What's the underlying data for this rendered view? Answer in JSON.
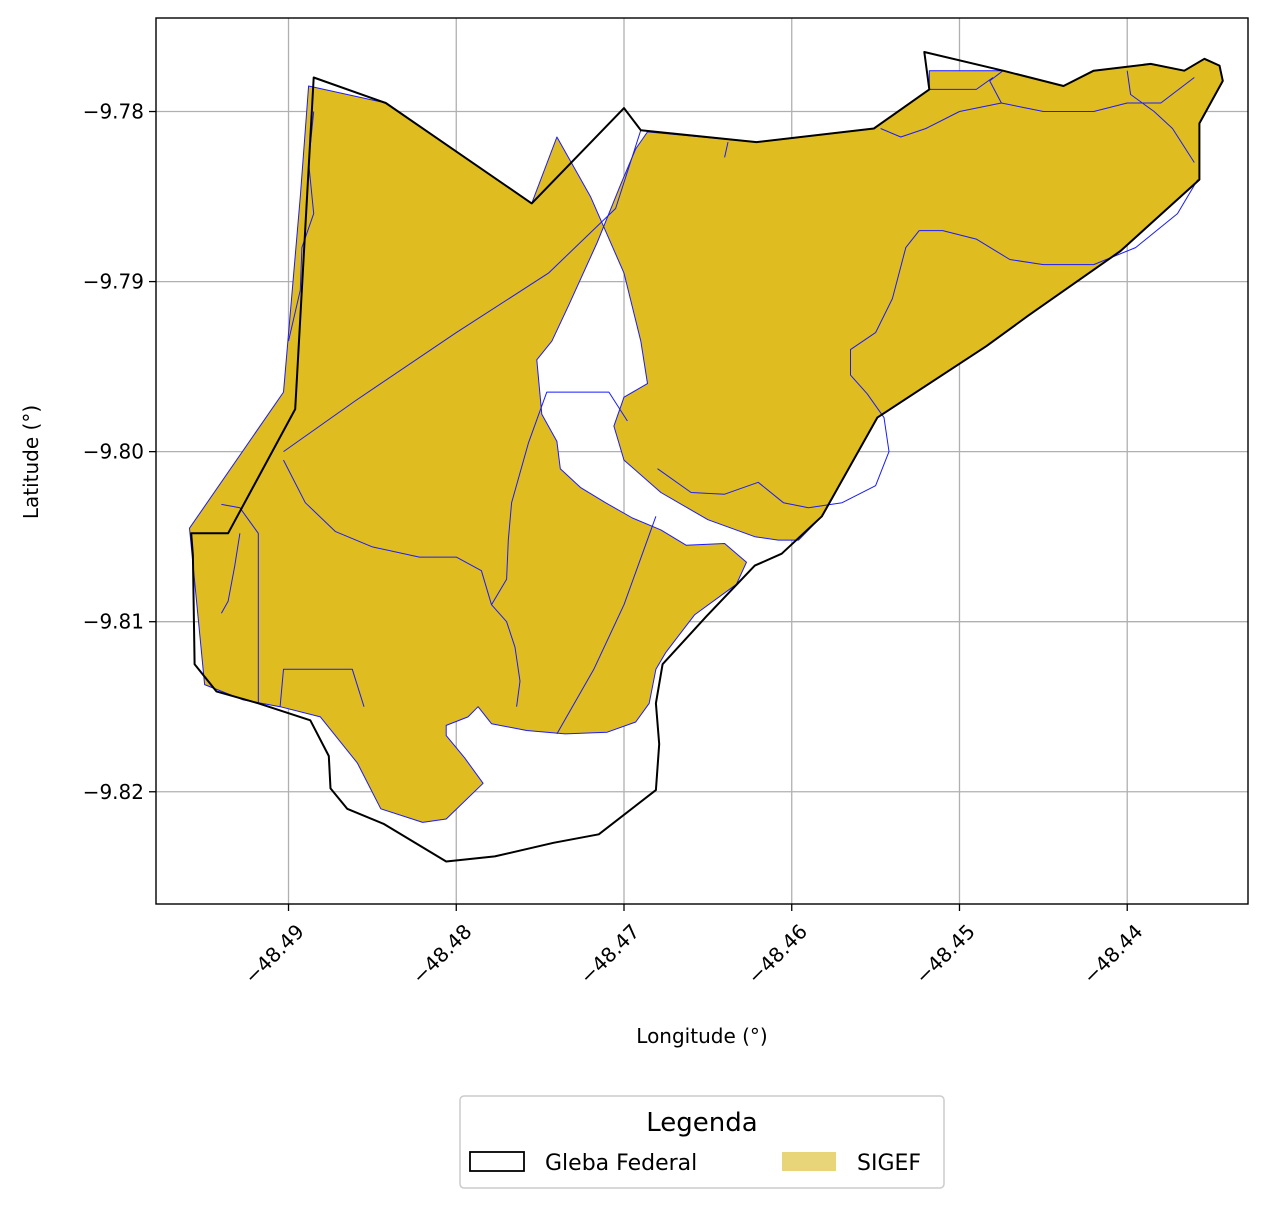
{
  "chart_data": {
    "type": "map",
    "xlabel": "Longitude (°)",
    "ylabel": "Latitude (°)",
    "xlim": [
      -48.4979,
      -48.4328
    ],
    "ylim": [
      -9.8266,
      -9.7745
    ],
    "x_ticks": [
      {
        "value": -48.49,
        "label": "−48.49"
      },
      {
        "value": -48.48,
        "label": "−48.48"
      },
      {
        "value": -48.47,
        "label": "−48.47"
      },
      {
        "value": -48.46,
        "label": "−48.46"
      },
      {
        "value": -48.45,
        "label": "−48.45"
      },
      {
        "value": -48.44,
        "label": "−48.44"
      }
    ],
    "y_ticks": [
      {
        "value": -9.78,
        "label": "−9.78"
      },
      {
        "value": -9.79,
        "label": "−9.79"
      },
      {
        "value": -9.8,
        "label": "−9.80"
      },
      {
        "value": -9.81,
        "label": "−9.81"
      },
      {
        "value": -9.82,
        "label": "−9.82"
      }
    ],
    "grid": true,
    "legend": {
      "title": "Legenda",
      "placement": "bottom-center",
      "entries": [
        {
          "label": "Gleba Federal",
          "style": "outline",
          "color": "#000000"
        },
        {
          "label": "SIGEF",
          "style": "fill",
          "color": "#e8d57a"
        }
      ]
    },
    "layers": [
      {
        "name": "Gleba Federal",
        "edgecolor": "#000000",
        "fill": "none",
        "polygons": [
          [
            [
              -48.4951,
              -9.8048
            ],
            [
              -48.4936,
              -9.8048
            ],
            [
              -48.4896,
              -9.7975
            ],
            [
              -48.4885,
              -9.778
            ],
            [
              -48.4842,
              -9.7795
            ],
            [
              -48.4755,
              -9.7854
            ],
            [
              -48.47,
              -9.7798
            ],
            [
              -48.469,
              -9.7811
            ],
            [
              -48.4621,
              -9.7818
            ],
            [
              -48.4551,
              -9.781
            ],
            [
              -48.4518,
              -9.7787
            ],
            [
              -48.4521,
              -9.7765
            ],
            [
              -48.4474,
              -9.7776
            ],
            [
              -48.4438,
              -9.7785
            ],
            [
              -48.442,
              -9.7776
            ],
            [
              -48.4386,
              -9.7772
            ],
            [
              -48.4366,
              -9.7776
            ],
            [
              -48.4354,
              -9.7769
            ],
            [
              -48.4345,
              -9.7773
            ],
            [
              -48.4343,
              -9.7782
            ],
            [
              -48.4357,
              -9.7807
            ],
            [
              -48.4357,
              -9.784
            ],
            [
              -48.4404,
              -9.7882
            ],
            [
              -48.4459,
              -9.792
            ],
            [
              -48.4484,
              -9.7938
            ],
            [
              -48.4549,
              -9.798
            ],
            [
              -48.4582,
              -9.8038
            ],
            [
              -48.4606,
              -9.806
            ],
            [
              -48.4622,
              -9.8067
            ],
            [
              -48.4651,
              -9.8097
            ],
            [
              -48.4677,
              -9.8125
            ],
            [
              -48.4681,
              -9.8148
            ],
            [
              -48.4679,
              -9.8172
            ],
            [
              -48.4681,
              -9.8199
            ],
            [
              -48.4715,
              -9.8225
            ],
            [
              -48.4742,
              -9.823
            ],
            [
              -48.4777,
              -9.8238
            ],
            [
              -48.4806,
              -9.8241
            ],
            [
              -48.4843,
              -9.8219
            ],
            [
              -48.4865,
              -9.821
            ],
            [
              -48.4875,
              -9.8198
            ],
            [
              -48.4876,
              -9.8179
            ],
            [
              -48.4887,
              -9.8158
            ],
            [
              -48.4918,
              -9.8148
            ],
            [
              -48.4943,
              -9.8141
            ],
            [
              -48.4956,
              -9.8125
            ],
            [
              -48.4957,
              -9.8061
            ],
            [
              -48.4958,
              -9.8048
            ]
          ]
        ]
      },
      {
        "name": "SIGEF",
        "fill": "#dfbd20",
        "edgecolor": "#1a1aff",
        "polygons": [
          [
            [
              -48.4888,
              -9.7785
            ],
            [
              -48.4893,
              -9.785
            ],
            [
              -48.4903,
              -9.7965
            ],
            [
              -48.4959,
              -9.8045
            ],
            [
              -48.495,
              -9.8137
            ],
            [
              -48.4927,
              -9.8146
            ],
            [
              -48.4905,
              -9.815
            ],
            [
              -48.4881,
              -9.8156
            ],
            [
              -48.4859,
              -9.8183
            ],
            [
              -48.4845,
              -9.821
            ],
            [
              -48.482,
              -9.8218
            ],
            [
              -48.4806,
              -9.8216
            ],
            [
              -48.4784,
              -9.8195
            ],
            [
              -48.4795,
              -9.818
            ],
            [
              -48.4806,
              -9.8167
            ],
            [
              -48.4806,
              -9.8161
            ],
            [
              -48.4793,
              -9.8156
            ],
            [
              -48.4787,
              -9.815
            ],
            [
              -48.4779,
              -9.816
            ],
            [
              -48.4758,
              -9.8164
            ],
            [
              -48.4735,
              -9.8166
            ],
            [
              -48.471,
              -9.8165
            ],
            [
              -48.4693,
              -9.8159
            ],
            [
              -48.4685,
              -9.8148
            ],
            [
              -48.4681,
              -9.8128
            ],
            [
              -48.4675,
              -9.8118
            ],
            [
              -48.4658,
              -9.8096
            ],
            [
              -48.4633,
              -9.8078
            ],
            [
              -48.4627,
              -9.8065
            ],
            [
              -48.464,
              -9.8054
            ],
            [
              -48.4663,
              -9.8055
            ],
            [
              -48.4678,
              -9.8046
            ],
            [
              -48.4695,
              -9.8039
            ],
            [
              -48.4711,
              -9.803
            ],
            [
              -48.4726,
              -9.8021
            ],
            [
              -48.4738,
              -9.801
            ],
            [
              -48.474,
              -9.7994
            ],
            [
              -48.4749,
              -9.7978
            ],
            [
              -48.4752,
              -9.7946
            ],
            [
              -48.4743,
              -9.7935
            ],
            [
              -48.4733,
              -9.7914
            ],
            [
              -48.4716,
              -9.7877
            ],
            [
              -48.4702,
              -9.7843
            ],
            [
              -48.4693,
              -9.7822
            ],
            [
              -48.4686,
              -9.7812
            ],
            [
              -48.4621,
              -9.7818
            ],
            [
              -48.4551,
              -9.781
            ],
            [
              -48.4518,
              -9.7787
            ],
            [
              -48.4518,
              -9.7776
            ],
            [
              -48.4474,
              -9.7776
            ],
            [
              -48.4438,
              -9.7785
            ],
            [
              -48.442,
              -9.7776
            ],
            [
              -48.4386,
              -9.7772
            ],
            [
              -48.4366,
              -9.7776
            ],
            [
              -48.4354,
              -9.7769
            ],
            [
              -48.4345,
              -9.7773
            ],
            [
              -48.4343,
              -9.7782
            ],
            [
              -48.4357,
              -9.7807
            ],
            [
              -48.4357,
              -9.784
            ],
            [
              -48.4404,
              -9.7882
            ],
            [
              -48.4459,
              -9.792
            ],
            [
              -48.4484,
              -9.7938
            ],
            [
              -48.4549,
              -9.798
            ],
            [
              -48.4582,
              -9.8038
            ],
            [
              -48.4596,
              -9.8052
            ],
            [
              -48.4608,
              -9.8052
            ],
            [
              -48.4622,
              -9.805
            ],
            [
              -48.465,
              -9.804
            ],
            [
              -48.4678,
              -9.8024
            ],
            [
              -48.47,
              -9.8005
            ],
            [
              -48.4706,
              -9.7985
            ],
            [
              -48.47,
              -9.7968
            ],
            [
              -48.4686,
              -9.796
            ],
            [
              -48.469,
              -9.7935
            ],
            [
              -48.47,
              -9.7895
            ],
            [
              -48.472,
              -9.785
            ],
            [
              -48.474,
              -9.7815
            ],
            [
              -48.4755,
              -9.7854
            ],
            [
              -48.4842,
              -9.7795
            ],
            [
              -48.4888,
              -9.7785
            ]
          ]
        ]
      }
    ]
  }
}
